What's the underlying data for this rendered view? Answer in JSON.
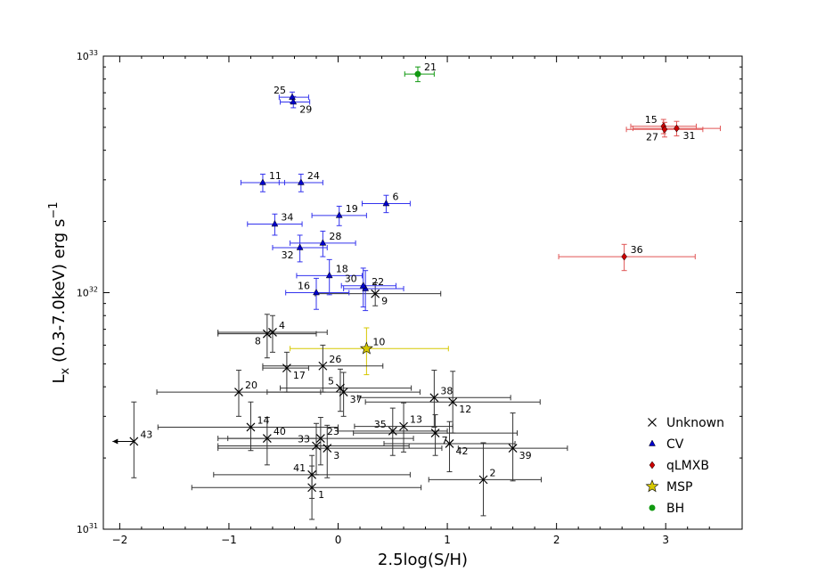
{
  "chart_data": {
    "type": "scatter",
    "title": "",
    "xlabel": "2.5log(S/H)",
    "ylabel": "L_x (0.3-7.0keV) erg s^-1",
    "ylabel_main": "L",
    "ylabel_sub": "x",
    "ylabel_mid": " (0.3-7.0keV) erg s",
    "ylabel_sup": "−1",
    "xlim": [
      -2.15,
      3.7
    ],
    "ylim_log10": [
      31,
      33
    ],
    "x_ticks": [
      {
        "v": -2,
        "label": "−2"
      },
      {
        "v": -1,
        "label": "−1"
      },
      {
        "v": 0,
        "label": "0"
      },
      {
        "v": 1,
        "label": "1"
      },
      {
        "v": 2,
        "label": "2"
      },
      {
        "v": 3,
        "label": "3"
      }
    ],
    "y_ticks": [
      {
        "v": 31,
        "base": "10",
        "exp": "31"
      },
      {
        "v": 32,
        "base": "10",
        "exp": "32"
      },
      {
        "v": 33,
        "base": "10",
        "exp": "33"
      }
    ],
    "legend": {
      "position": "lower-right",
      "entries": [
        {
          "label": "Unknown",
          "class": "unknown"
        },
        {
          "label": "CV",
          "class": "cv"
        },
        {
          "label": "qLMXB",
          "class": "qlmxb"
        },
        {
          "label": "MSP",
          "class": "msp"
        },
        {
          "label": "BH",
          "class": "bh"
        }
      ]
    },
    "class_styles": {
      "unknown": {
        "color": "#000000",
        "err_color": "#333333",
        "marker": "x"
      },
      "cv": {
        "color": "#0000cc",
        "err_color": "#3333ee",
        "marker": "triangle"
      },
      "qlmxb": {
        "color": "#cc0000",
        "err_color": "#e05555",
        "marker": "diamond"
      },
      "msp": {
        "color": "#d6c800",
        "err_color": "#d6c800",
        "marker": "star"
      },
      "bh": {
        "color": "#119911",
        "err_color": "#119911",
        "marker": "circle"
      }
    },
    "series": [
      {
        "id": "1",
        "class": "unknown",
        "x": -0.24,
        "lx": 1.5e+31,
        "xerr": [
          1.1,
          1.0
        ],
        "lxerr": [
          4e+30,
          3.5e+30
        ],
        "label_side": "right-below"
      },
      {
        "id": "2",
        "class": "unknown",
        "x": 1.33,
        "lx": 1.62e+31,
        "xerr": [
          0.5,
          0.53
        ],
        "lxerr": [
          4.8e+30,
          7e+30
        ],
        "label_side": "right-above"
      },
      {
        "id": "3",
        "class": "unknown",
        "x": -0.1,
        "lx": 2.2e+31,
        "xerr": [
          1.0,
          1.05
        ],
        "lxerr": [
          5.5e+30,
          5.5e+30
        ],
        "label_side": "right-below"
      },
      {
        "id": "4",
        "class": "unknown",
        "x": -0.6,
        "lx": 6.8e+31,
        "xerr": [
          0.5,
          0.5
        ],
        "lxerr": [
          1.2e+31,
          1.2e+31
        ],
        "label_side": "right-above"
      },
      {
        "id": "5",
        "class": "unknown",
        "x": 0.02,
        "lx": 3.95e+31,
        "xerr": [
          0.55,
          0.65
        ],
        "lxerr": [
          8e+30,
          8e+30
        ],
        "label_side": "left-above"
      },
      {
        "id": "6",
        "class": "cv",
        "x": 0.44,
        "lx": 2.38e+32,
        "xerr": [
          0.22,
          0.22
        ],
        "lxerr": [
          2e+31,
          2e+31
        ],
        "label_side": "right-above"
      },
      {
        "id": "7",
        "class": "unknown",
        "x": 0.89,
        "lx": 2.55e+31,
        "xerr": [
          0.75,
          0.75
        ],
        "lxerr": [
          5e+30,
          5e+30
        ],
        "label_side": "right-below"
      },
      {
        "id": "8",
        "class": "unknown",
        "x": -0.65,
        "lx": 6.7e+31,
        "xerr": [
          0.45,
          0.45
        ],
        "lxerr": [
          1.4e+31,
          1.4e+31
        ],
        "label_side": "left-below"
      },
      {
        "id": "9",
        "class": "unknown",
        "x": 0.34,
        "lx": 9.9e+31,
        "xerr": [
          0.55,
          0.6
        ],
        "lxerr": [
          1.1e+31,
          1.1e+31
        ],
        "label_side": "right-below"
      },
      {
        "id": "10",
        "class": "msp",
        "x": 0.26,
        "lx": 5.8e+31,
        "xerr": [
          0.7,
          0.75
        ],
        "lxerr": [
          1.3e+31,
          1.3e+31
        ],
        "label_side": "right-above"
      },
      {
        "id": "11",
        "class": "cv",
        "x": -0.69,
        "lx": 2.92e+32,
        "xerr": [
          0.2,
          0.2
        ],
        "lxerr": [
          2.5e+31,
          2.5e+31
        ],
        "label_side": "right-above"
      },
      {
        "id": "12",
        "class": "unknown",
        "x": 1.05,
        "lx": 3.45e+31,
        "xerr": [
          0.8,
          0.8
        ],
        "lxerr": [
          9e+30,
          1.2e+31
        ],
        "label_side": "right-below"
      },
      {
        "id": "13",
        "class": "unknown",
        "x": 0.6,
        "lx": 2.72e+31,
        "xerr": [
          0.45,
          0.45
        ],
        "lxerr": [
          6e+30,
          7e+30
        ],
        "label_side": "right-above"
      },
      {
        "id": "14",
        "class": "unknown",
        "x": -0.8,
        "lx": 2.7e+31,
        "xerr": [
          0.85,
          0.8
        ],
        "lxerr": [
          5.5e+30,
          7.5e+30
        ],
        "label_side": "right-above"
      },
      {
        "id": "15",
        "class": "qlmxb",
        "x": 2.98,
        "lx": 5.05e+32,
        "xerr": [
          0.3,
          0.3
        ],
        "lxerr": [
          3.5e+31,
          3.5e+31
        ],
        "label_side": "left-above"
      },
      {
        "id": "16",
        "class": "cv",
        "x": -0.2,
        "lx": 1e+32,
        "xerr": [
          0.28,
          0.3
        ],
        "lxerr": [
          1.5e+31,
          1.5e+31
        ],
        "label_side": "left-above"
      },
      {
        "id": "17",
        "class": "unknown",
        "x": -0.47,
        "lx": 4.8e+31,
        "xerr": [
          0.22,
          0.2
        ],
        "lxerr": [
          1e+31,
          8e+30
        ],
        "label_side": "right-below"
      },
      {
        "id": "18",
        "class": "cv",
        "x": -0.08,
        "lx": 1.18e+32,
        "xerr": [
          0.3,
          0.3
        ],
        "lxerr": [
          2e+31,
          2e+31
        ],
        "label_side": "right-above"
      },
      {
        "id": "19",
        "class": "cv",
        "x": 0.01,
        "lx": 2.12e+32,
        "xerr": [
          0.25,
          0.25
        ],
        "lxerr": [
          2e+31,
          2e+31
        ],
        "label_side": "right-above"
      },
      {
        "id": "20",
        "class": "unknown",
        "x": -0.91,
        "lx": 3.8e+31,
        "xerr": [
          0.75,
          0.75
        ],
        "lxerr": [
          8e+30,
          9e+30
        ],
        "label_side": "right-above"
      },
      {
        "id": "21",
        "class": "bh",
        "x": 0.73,
        "lx": 8.4e+32,
        "xerr": [
          0.12,
          0.15
        ],
        "lxerr": [
          6e+31,
          6e+31
        ],
        "label_side": "right-above"
      },
      {
        "id": "22",
        "class": "cv",
        "x": 0.25,
        "lx": 1.04e+32,
        "xerr": [
          0.2,
          0.35
        ],
        "lxerr": [
          2e+31,
          2e+31
        ],
        "label_side": "right-above"
      },
      {
        "id": "23",
        "class": "unknown",
        "x": -0.16,
        "lx": 2.42e+31,
        "xerr": [
          0.85,
          0.85
        ],
        "lxerr": [
          5.5e+30,
          5.5e+30
        ],
        "label_side": "right-above"
      },
      {
        "id": "24",
        "class": "cv",
        "x": -0.34,
        "lx": 2.92e+32,
        "xerr": [
          0.2,
          0.2
        ],
        "lxerr": [
          2.5e+31,
          2.5e+31
        ],
        "label_side": "right-above"
      },
      {
        "id": "25",
        "class": "cv",
        "x": -0.42,
        "lx": 6.7e+32,
        "xerr": [
          0.12,
          0.15
        ],
        "lxerr": [
          3.5e+31,
          3.5e+31
        ],
        "label_side": "left-above"
      },
      {
        "id": "26",
        "class": "unknown",
        "x": -0.14,
        "lx": 4.9e+31,
        "xerr": [
          0.55,
          0.55
        ],
        "lxerr": [
          1.1e+31,
          1.1e+31
        ],
        "label_side": "right-above"
      },
      {
        "id": "27",
        "class": "qlmxb",
        "x": 2.99,
        "lx": 4.9e+32,
        "xerr": [
          0.35,
          0.35
        ],
        "lxerr": [
          3.5e+31,
          3.5e+31
        ],
        "label_side": "left-below"
      },
      {
        "id": "28",
        "class": "cv",
        "x": -0.14,
        "lx": 1.62e+32,
        "xerr": [
          0.3,
          0.3
        ],
        "lxerr": [
          2e+31,
          2e+31
        ],
        "label_side": "right-above"
      },
      {
        "id": "29",
        "class": "cv",
        "x": -0.41,
        "lx": 6.4e+32,
        "xerr": [
          0.12,
          0.15
        ],
        "lxerr": [
          3.5e+31,
          3.5e+31
        ],
        "label_side": "right-below"
      },
      {
        "id": "30",
        "class": "cv",
        "x": 0.23,
        "lx": 1.07e+32,
        "xerr": [
          0.2,
          0.3
        ],
        "lxerr": [
          2e+31,
          2e+31
        ],
        "label_side": "left-above"
      },
      {
        "id": "31",
        "class": "qlmxb",
        "x": 3.1,
        "lx": 4.95e+32,
        "xerr": [
          0.4,
          0.4
        ],
        "lxerr": [
          3.5e+31,
          3.5e+31
        ],
        "label_side": "right-below"
      },
      {
        "id": "32",
        "class": "cv",
        "x": -0.35,
        "lx": 1.55e+32,
        "xerr": [
          0.25,
          0.25
        ],
        "lxerr": [
          2e+31,
          2e+31
        ],
        "label_side": "left-below"
      },
      {
        "id": "33",
        "class": "unknown",
        "x": -0.2,
        "lx": 2.25e+31,
        "xerr": [
          0.9,
          0.85
        ],
        "lxerr": [
          5.5e+30,
          5.5e+30
        ],
        "label_side": "left-above"
      },
      {
        "id": "34",
        "class": "cv",
        "x": -0.58,
        "lx": 1.95e+32,
        "xerr": [
          0.25,
          0.25
        ],
        "lxerr": [
          2e+31,
          2e+31
        ],
        "label_side": "right-above"
      },
      {
        "id": "35",
        "class": "unknown",
        "x": 0.5,
        "lx": 2.6e+31,
        "xerr": [
          0.5,
          0.5
        ],
        "lxerr": [
          5.5e+30,
          6.5e+30
        ],
        "label_side": "left-above"
      },
      {
        "id": "36",
        "class": "qlmxb",
        "x": 2.62,
        "lx": 1.42e+32,
        "xerr": [
          0.6,
          0.65
        ],
        "lxerr": [
          1.8e+31,
          1.8e+31
        ],
        "label_side": "right-above"
      },
      {
        "id": "37",
        "class": "unknown",
        "x": 0.05,
        "lx": 3.8e+31,
        "xerr": [
          0.7,
          0.7
        ],
        "lxerr": [
          8e+30,
          8e+30
        ],
        "label_side": "right-below"
      },
      {
        "id": "38",
        "class": "unknown",
        "x": 0.88,
        "lx": 3.6e+31,
        "xerr": [
          0.7,
          0.7
        ],
        "lxerr": [
          9e+30,
          1.1e+31
        ],
        "label_side": "right-above"
      },
      {
        "id": "39",
        "class": "unknown",
        "x": 1.6,
        "lx": 2.2e+31,
        "xerr": [
          0.5,
          0.5
        ],
        "lxerr": [
          6e+30,
          9e+30
        ],
        "label_side": "right-below"
      },
      {
        "id": "40",
        "class": "unknown",
        "x": -0.65,
        "lx": 2.42e+31,
        "xerr": [
          0.45,
          0.45
        ],
        "lxerr": [
          5.5e+30,
          5.5e+30
        ],
        "label_side": "right-above"
      },
      {
        "id": "41",
        "class": "unknown",
        "x": -0.24,
        "lx": 1.7e+31,
        "xerr": [
          0.9,
          0.9
        ],
        "lxerr": [
          3.5e+30,
          3.5e+30
        ],
        "label_side": "left-above"
      },
      {
        "id": "42",
        "class": "unknown",
        "x": 1.02,
        "lx": 2.3e+31,
        "xerr": [
          0.6,
          0.6
        ],
        "lxerr": [
          5.5e+30,
          5.5e+30
        ],
        "label_side": "right-below"
      },
      {
        "id": "43",
        "class": "unknown",
        "x": -1.87,
        "lx": 2.35e+31,
        "xerr": [
          0.0,
          0.0
        ],
        "lxerr": [
          7e+30,
          1.1e+31
        ],
        "label_side": "right-above",
        "upper_limit_left": true
      }
    ]
  }
}
